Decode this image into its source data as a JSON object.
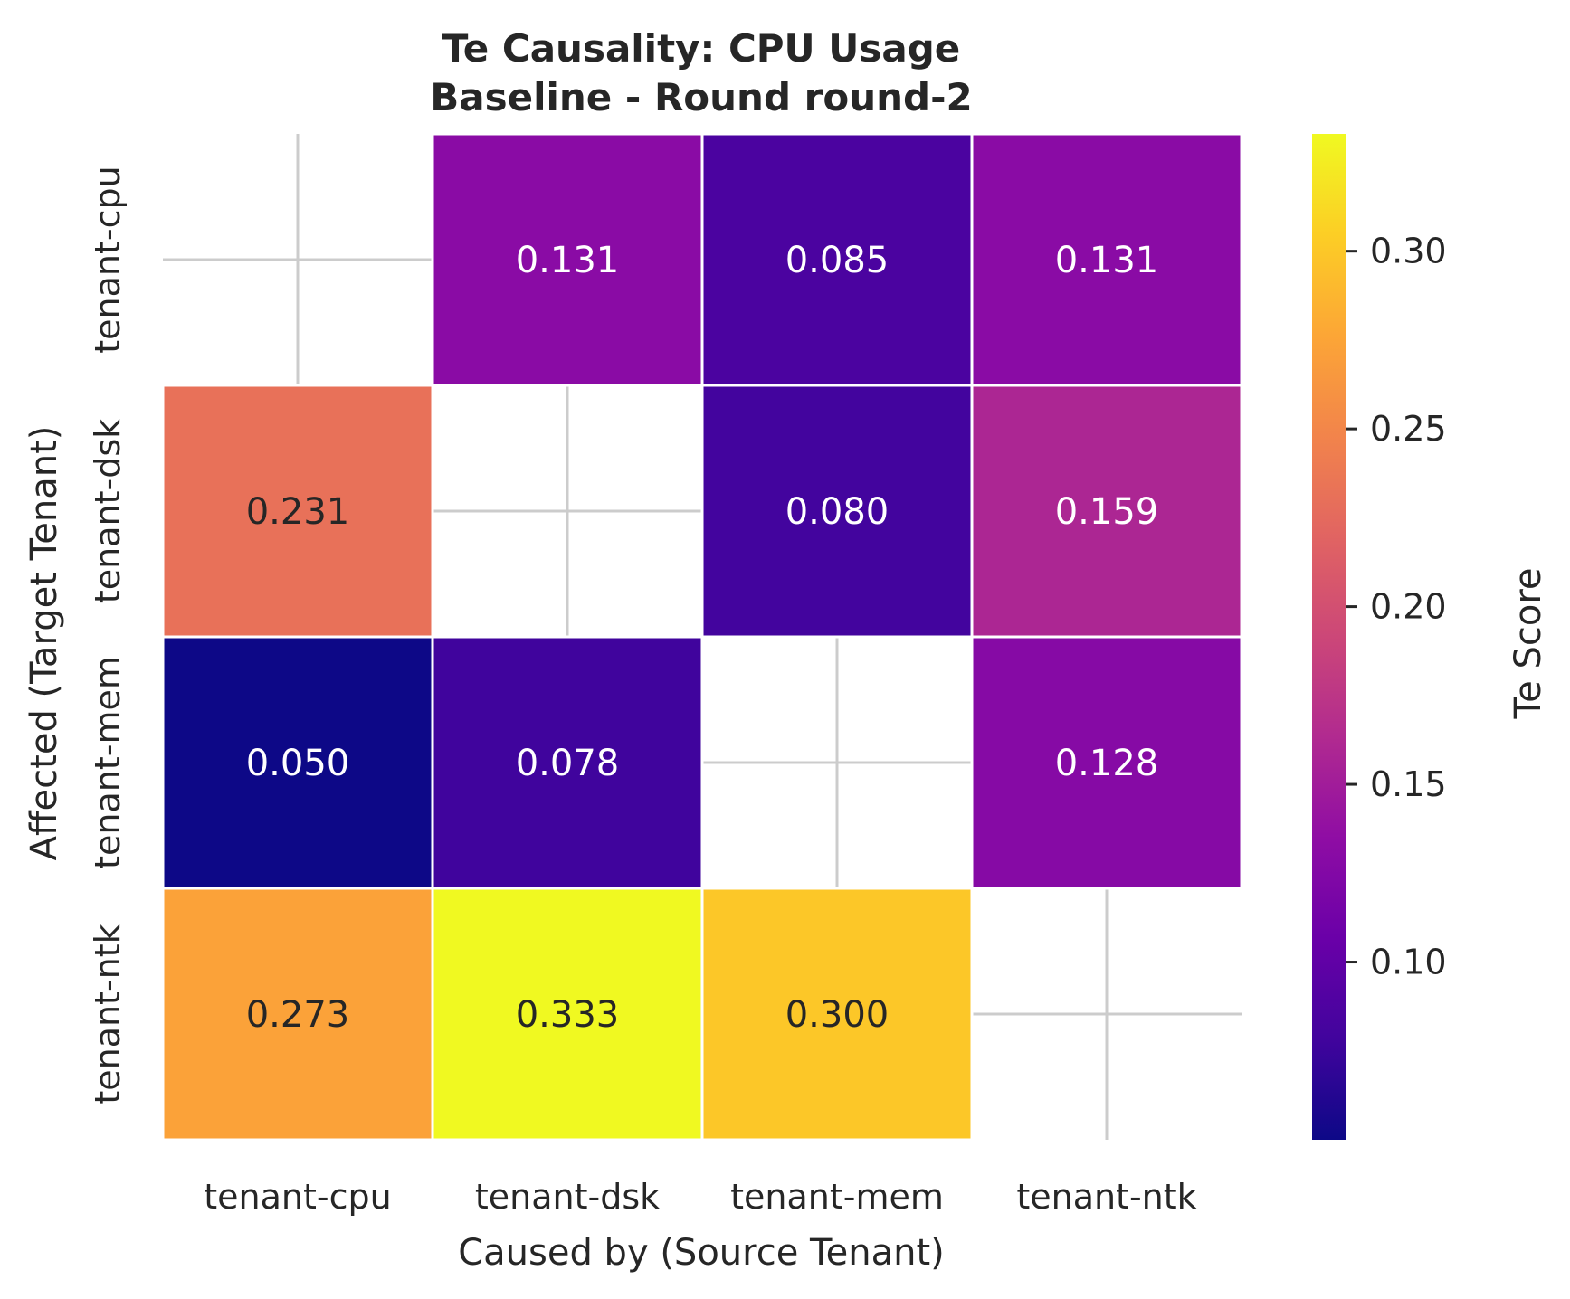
{
  "chart_data": {
    "type": "heatmap",
    "title": "Te Causality: CPU Usage",
    "subtitle": "Baseline - Round round-2",
    "xlabel": "Caused by (Source Tenant)",
    "ylabel": "Affected (Target Tenant)",
    "x_categories": [
      "tenant-cpu",
      "tenant-dsk",
      "tenant-mem",
      "tenant-ntk"
    ],
    "y_categories": [
      "tenant-cpu",
      "tenant-dsk",
      "tenant-mem",
      "tenant-ntk"
    ],
    "values": [
      [
        null,
        0.131,
        0.085,
        0.131
      ],
      [
        0.231,
        null,
        0.08,
        0.159
      ],
      [
        0.05,
        0.078,
        null,
        0.128
      ],
      [
        0.273,
        0.333,
        0.3,
        null
      ]
    ],
    "labels": [
      [
        "",
        "0.131",
        "0.085",
        "0.131"
      ],
      [
        "0.231",
        "",
        "0.080",
        "0.159"
      ],
      [
        "0.050",
        "0.078",
        "",
        "0.128"
      ],
      [
        "0.273",
        "0.333",
        "0.300",
        ""
      ]
    ],
    "colorbar": {
      "label": "Te Score",
      "min": 0.05,
      "max": 0.333,
      "ticks": [
        0.1,
        0.15,
        0.2,
        0.25,
        0.3
      ],
      "tick_labels": [
        "0.10",
        "0.15",
        "0.20",
        "0.25",
        "0.30"
      ],
      "colormap": "plasma"
    },
    "grid": true
  }
}
